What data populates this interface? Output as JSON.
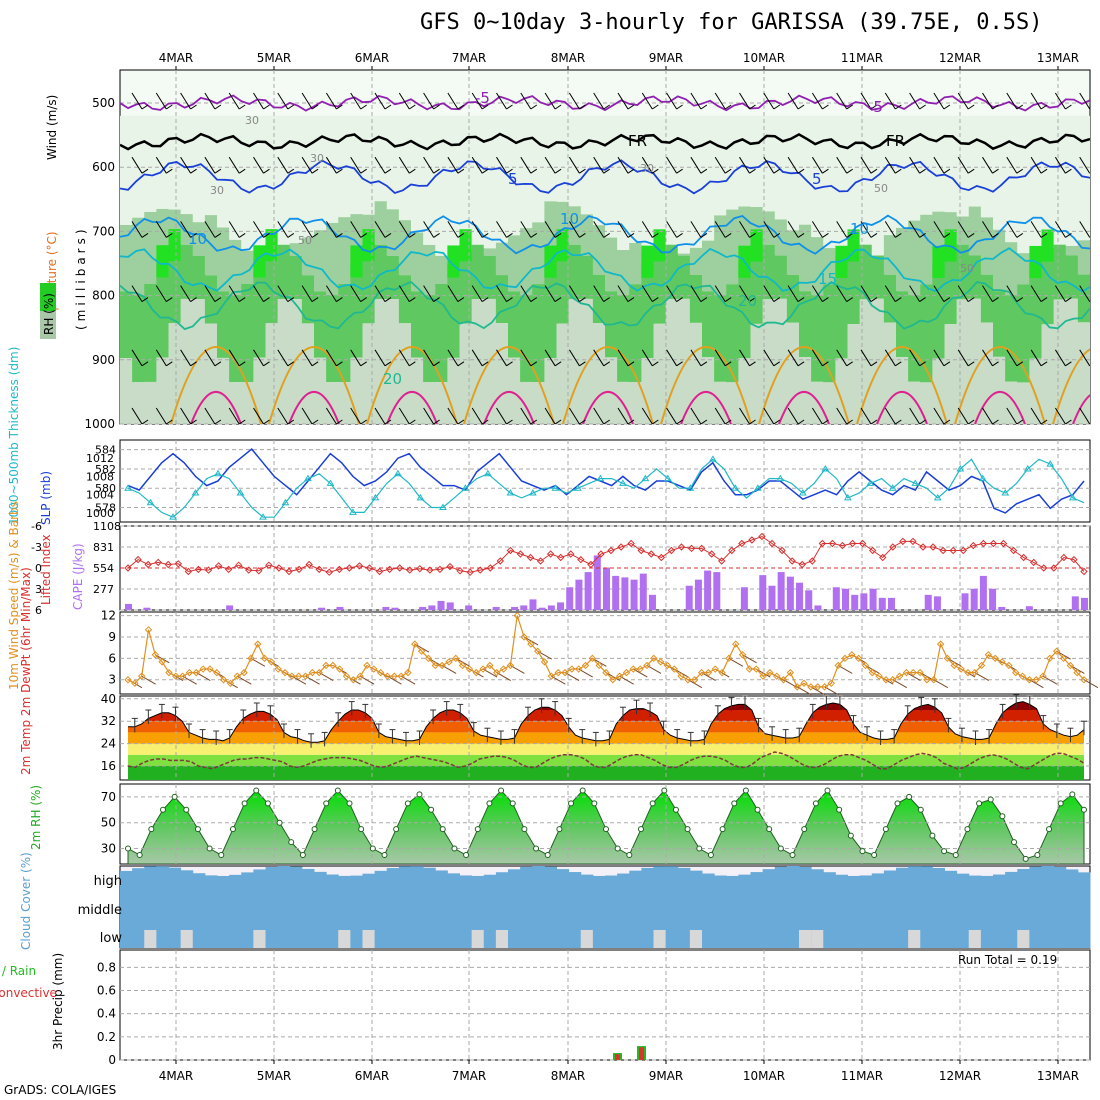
{
  "title": "GFS 0~10day 3-hourly for GARISSA (39.75E, 0.5S)",
  "footer": "GrADS: COLA/IGES",
  "colors": {
    "temperature_label": "#e07020",
    "rh_green": "#22cc22",
    "slp_line": "#1a3fd6",
    "thickness_line": "#20b8c8",
    "lifted_index": "#d83030",
    "cape_bar": "#b070f0",
    "wind_speed": "#e09020",
    "cloud_blue": "#6aaad8",
    "cloud_grey": "#d8d8d8",
    "precip_total": "#22bb22",
    "precip_conv": "#e03030"
  },
  "chart_data": [
    {
      "type": "heatmap",
      "panel": "upper-air",
      "y_label_parts": [
        "Wind (m/s)",
        "Temperature (°C)",
        "(millibars)"
      ],
      "legend_label": "RH (%)",
      "y_ticks": [
        "500",
        "600",
        "700",
        "800",
        "900",
        "1000"
      ],
      "x_ticks": [
        "4MAR",
        "5MAR",
        "6MAR",
        "7MAR",
        "8MAR",
        "9MAR",
        "10MAR",
        "11MAR",
        "12MAR",
        "13MAR"
      ],
      "contour_labels": [
        "-5",
        "-5",
        "FR",
        "FR",
        "5",
        "5",
        "10",
        "10",
        "10",
        "15",
        "20",
        "20",
        "30",
        "30",
        "30",
        "30",
        "50",
        "50",
        "50"
      ],
      "isotherms": [
        {
          "name": "-5",
          "level": 500,
          "color": "#9020b0"
        },
        {
          "name": "FR",
          "level": 560,
          "color": "#000000"
        },
        {
          "name": "5",
          "level": 615,
          "color": "#1a40d8"
        },
        {
          "name": "10",
          "level": 705,
          "color": "#1090e8"
        },
        {
          "name": "15",
          "level": 760,
          "color": "#10b8c8"
        },
        {
          "name": "20",
          "level": 815,
          "color": "#20b890"
        }
      ]
    },
    {
      "type": "line",
      "panel": "slp-thickness",
      "series": [
        {
          "name": "SLP (mb)",
          "axis": "right",
          "values": [
            1006,
            1005,
            1008,
            1011,
            1013,
            1011,
            1008,
            1006,
            1007,
            1010,
            1012,
            1014,
            1011,
            1008,
            1006,
            1004,
            1007,
            1010,
            1013,
            1011,
            1008,
            1006,
            1007,
            1009,
            1012,
            1013,
            1010,
            1008,
            1006,
            1006,
            1005,
            1009,
            1011,
            1013,
            1010,
            1007,
            1006,
            1005,
            1006,
            1004,
            1006,
            1008,
            1007,
            1006,
            1008,
            1006,
            1005,
            1007,
            1007,
            1006,
            1005,
            1009,
            1011,
            1007,
            1004,
            1004,
            1005,
            1007,
            1007,
            1005,
            1003,
            1004,
            1005,
            1004,
            1007,
            1009,
            1007,
            1005,
            1004,
            1006,
            1005,
            1009,
            1007,
            1005,
            1006,
            1008,
            1007,
            1001,
            1000,
            1002,
            1003,
            1004,
            1001,
            1003,
            1004,
            1007
          ]
        },
        {
          "name": "Thickness (dm)",
          "axis": "left",
          "values": [
            580,
            579.5,
            578.5,
            577.5,
            577,
            578,
            579.5,
            581,
            581.5,
            581,
            579.5,
            578,
            577,
            577,
            578.5,
            580,
            581,
            581.5,
            580.5,
            579,
            577.5,
            577.5,
            579,
            580.5,
            581.5,
            580.5,
            579,
            578,
            578,
            579,
            580,
            581,
            581.5,
            580.5,
            579.5,
            579,
            579.5,
            580,
            580,
            579.5,
            580,
            580.5,
            581,
            581,
            580.5,
            580,
            581,
            582,
            581,
            580,
            580,
            582,
            583,
            582,
            580,
            579,
            580,
            581,
            581,
            580.5,
            579.5,
            580.5,
            582,
            581,
            579,
            579.5,
            580.5,
            581,
            580,
            581,
            580.5,
            580,
            579,
            580,
            582,
            583,
            581,
            580,
            579.5,
            580.5,
            582,
            583,
            582.5,
            581,
            579,
            578.5
          ]
        }
      ],
      "left_ticks": [
        "578",
        "580",
        "582",
        "584"
      ],
      "right_ticks": [
        "1000",
        "1004",
        "1008",
        "1012"
      ],
      "y_label_left": "1000~500mb Thickness (dm)",
      "y_label_right": "SLP (mb)"
    },
    {
      "type": "bar",
      "panel": "cape-li",
      "series": [
        {
          "name": "CAPE (J/kg)",
          "values": [
            80,
            0,
            30,
            0,
            0,
            0,
            0,
            0,
            0,
            0,
            0,
            60,
            0,
            0,
            0,
            0,
            0,
            0,
            0,
            0,
            0,
            30,
            0,
            40,
            0,
            0,
            0,
            0,
            40,
            30,
            0,
            0,
            40,
            60,
            120,
            100,
            0,
            60,
            0,
            0,
            40,
            0,
            40,
            60,
            140,
            30,
            60,
            100,
            300,
            400,
            500,
            720,
            560,
            450,
            430,
            400,
            480,
            200,
            0,
            0,
            0,
            320,
            400,
            520,
            500,
            0,
            0,
            300,
            0,
            460,
            320,
            500,
            440,
            360,
            260,
            60,
            0,
            300,
            280,
            200,
            220,
            280,
            160,
            160,
            0,
            0,
            0,
            200,
            180,
            0,
            0,
            220,
            280,
            450,
            280,
            40,
            0,
            0,
            50,
            0,
            0,
            0,
            0,
            180,
            160
          ]
        },
        {
          "name": "Lifted Index",
          "values": [
            0,
            -1.2,
            -0.5,
            -0.8,
            -0.5,
            -0.6,
            0.5,
            0.2,
            0.3,
            -0.3,
            0.2,
            -0.4,
            0.3,
            0.4,
            -0.4,
            0,
            0.5,
            0.2,
            -0.5,
            0.2,
            0.6,
            0.2,
            0,
            -0.3,
            0,
            0.5,
            0.2,
            0,
            0.3,
            0.1,
            0.3,
            0.2,
            -0.2,
            0.4,
            0.6,
            0.3,
            0,
            -1,
            -2.5,
            -2,
            -1.5,
            -1,
            -2,
            -1.5,
            -2,
            -1.2,
            -0.5,
            -2,
            -2.5,
            -3,
            -3.5,
            -2.5,
            -2,
            -1.5,
            -2.5,
            -3,
            -2.8,
            -2.8,
            -2,
            -1,
            -2.5,
            -3.5,
            -4,
            -4.5,
            -3.5,
            -2.5,
            -1,
            -0.5,
            -1,
            -3.5,
            -3.5,
            -3.2,
            -3.5,
            -3.5,
            -2.5,
            -1.5,
            -3,
            -3.8,
            -3.8,
            -3,
            -3,
            -2.5,
            -2.5,
            -2.5,
            -3.2,
            -3.5,
            -3.5,
            -3.5,
            -2.5,
            -1.5,
            -0.8,
            0,
            0,
            -1.5,
            -1.2,
            0.5
          ]
        }
      ],
      "left_ticks": [
        "-6",
        "-3",
        "0",
        "3",
        "6"
      ],
      "right_ticks": [
        "277",
        "554",
        "831",
        "1108"
      ],
      "y_label_left": "Lifted Index",
      "y_label_right": "CAPE (J/kg)"
    },
    {
      "type": "line",
      "panel": "wind-10m",
      "series": [
        {
          "name": "Speed",
          "values": [
            3,
            2.5,
            3.5,
            10,
            6.5,
            5.5,
            4,
            3.5,
            3.5,
            4,
            4,
            4.5,
            4.5,
            4,
            3,
            2.5,
            3.5,
            4,
            6,
            8,
            6,
            5.5,
            4.5,
            4,
            3.5,
            3.5,
            3.5,
            4,
            4,
            5,
            5,
            4.5,
            3.5,
            3,
            3.5,
            5,
            4.5,
            4,
            3.5,
            3.5,
            3.5,
            4,
            8,
            7,
            6,
            5,
            5,
            5.5,
            6,
            5,
            4.5,
            4,
            4.5,
            5,
            4,
            4.5,
            5,
            12,
            9,
            8,
            7,
            5.5,
            3.5,
            4,
            4,
            4.5,
            4.5,
            5,
            6,
            5,
            4,
            3,
            3.5,
            4,
            4.5,
            4.5,
            5,
            6,
            5.5,
            5,
            4.5,
            3.5,
            3,
            3,
            4,
            4,
            4.5,
            4,
            6,
            8,
            6.5,
            4.5,
            4.5,
            3.5,
            4,
            3.5,
            3,
            4,
            2,
            2.5,
            2,
            2,
            2,
            2.5,
            5,
            6,
            6.5,
            6,
            5,
            4,
            3.5,
            3,
            3,
            3.5,
            4,
            4,
            4,
            3,
            3,
            8,
            6,
            5,
            4.5,
            4,
            4,
            5,
            6.5,
            6,
            5.5,
            5,
            4,
            3.5,
            3,
            3,
            3.5,
            6,
            7,
            6,
            5,
            4,
            3
          ]
        }
      ],
      "y_ticks": [
        "3",
        "6",
        "9",
        "12"
      ],
      "y_label": "10m Wind Speed (m/s) & Barbs"
    },
    {
      "type": "area",
      "panel": "temp-2m",
      "series": [
        {
          "name": "2m Temp",
          "values": [
            30,
            30,
            31,
            33,
            34,
            35,
            35,
            34,
            32,
            28,
            27,
            26,
            25.5,
            25.5,
            25,
            26,
            30,
            33,
            34.5,
            35.5,
            35.5,
            34.5,
            32.5,
            28,
            26.5,
            26,
            25,
            24.5,
            24.5,
            25,
            29,
            32,
            34.5,
            36,
            36,
            35,
            33,
            28,
            26.5,
            26,
            25.5,
            25,
            25,
            25.5,
            30,
            33,
            35,
            36,
            36,
            35,
            33,
            28.5,
            27,
            26.5,
            26,
            25.5,
            25.5,
            26,
            31,
            34,
            36,
            37,
            37,
            36,
            34,
            30,
            27,
            26,
            25.5,
            25,
            25,
            25.5,
            31,
            34,
            36,
            36.5,
            36.5,
            35.5,
            34,
            29,
            27,
            26,
            25.5,
            25,
            25,
            25.5,
            31,
            34.5,
            36.5,
            37.5,
            38,
            38,
            36,
            30,
            27.5,
            27,
            26.5,
            26,
            26,
            26.5,
            31,
            35,
            37,
            38,
            38.5,
            38,
            36,
            31,
            28,
            27,
            26,
            25.5,
            25.5,
            26,
            31,
            34.5,
            36.5,
            37.5,
            38,
            37,
            35,
            30,
            27.5,
            26.5,
            26,
            25.5,
            25.5,
            26,
            31,
            35,
            37,
            38.5,
            39,
            38,
            36.5,
            31,
            29,
            28,
            27,
            26.5,
            27,
            29
          ]
        },
        {
          "name": "2m DewPt",
          "values": [
            16,
            15.5,
            17,
            18,
            18.5,
            18.5,
            18,
            18,
            18,
            17.5,
            16,
            15.5,
            15,
            16,
            17,
            18,
            18.5,
            18.5,
            19,
            19,
            18.5,
            18,
            17.5,
            16,
            15.5,
            16,
            17,
            18,
            18.5,
            19,
            19,
            19,
            18.5,
            18,
            17,
            16,
            15.5,
            16,
            17,
            18,
            19,
            19.5,
            19,
            18.5,
            18,
            17.5,
            16.5,
            15.5,
            16,
            17,
            18.5,
            19,
            19.5,
            19.5,
            19,
            18,
            16.5,
            15.5,
            15.5,
            17,
            18.5,
            19.5,
            20,
            20,
            19.5,
            18.5,
            16.5,
            15.5,
            15.5,
            17,
            18.5,
            19.5,
            20,
            20,
            19,
            18,
            16.5,
            15.5,
            15.5,
            16.5,
            18,
            19,
            19.5,
            19.5,
            19,
            18,
            16.5,
            15.5,
            15.5,
            17,
            19,
            20,
            21,
            20.5,
            19.5,
            18,
            16.5,
            15.5,
            15.5,
            16.5,
            18,
            19.5,
            20,
            20,
            19,
            18,
            16.5,
            15,
            15,
            16.5,
            18,
            19,
            20,
            20.5,
            20,
            19,
            17,
            16,
            15,
            15.5,
            17,
            18.5,
            19.5,
            20,
            19.5,
            18.5,
            17,
            15.5,
            15,
            16.5,
            18,
            19.5,
            20.5,
            20.5,
            19.5,
            18.5,
            17
          ]
        }
      ],
      "y_ticks": [
        "16",
        "24",
        "32",
        "40"
      ],
      "y_label": "2m Temp 2m DewPt (6hr Min/Max)"
    },
    {
      "type": "area",
      "panel": "rh-2m",
      "series": [
        {
          "name": "2m RH",
          "values": [
            30,
            25,
            45,
            60,
            70,
            60,
            45,
            30,
            25,
            45,
            65,
            75,
            65,
            50,
            35,
            25,
            45,
            65,
            75,
            65,
            45,
            30,
            25,
            45,
            65,
            72,
            60,
            45,
            30,
            25,
            45,
            65,
            75,
            65,
            45,
            30,
            25,
            45,
            65,
            75,
            65,
            45,
            30,
            25,
            45,
            65,
            75,
            60,
            45,
            30,
            25,
            45,
            65,
            75,
            60,
            45,
            30,
            25,
            45,
            65,
            75,
            60,
            40,
            28,
            25,
            45,
            65,
            70,
            60,
            40,
            28,
            25,
            45,
            65,
            68,
            55,
            35,
            22,
            25,
            45,
            65,
            72,
            60
          ]
        }
      ],
      "y_ticks": [
        "30",
        "50",
        "70"
      ],
      "y_label": "2m RH (%)"
    },
    {
      "type": "heatmap",
      "panel": "cloud-cover",
      "rows": [
        "high",
        "middle",
        "low"
      ],
      "y_label": "Cloud Cover (%)"
    },
    {
      "type": "bar",
      "panel": "precip",
      "series": [
        {
          "name": "Total / Rain",
          "values": [
            0.06,
            0.12
          ]
        },
        {
          "name": "Convective",
          "values": [
            0.05,
            0.11
          ]
        }
      ],
      "x": [
        "8MAR",
        "9MAR"
      ],
      "y_ticks": [
        "0",
        "0.2",
        "0.4",
        "0.6",
        "0.8"
      ],
      "y_label": "3hr Precip (mm)",
      "legend": [
        "Total / Rain",
        "Convective"
      ],
      "annotation": "Run Total = 0.19",
      "ylim": [
        0,
        0.95
      ]
    }
  ]
}
